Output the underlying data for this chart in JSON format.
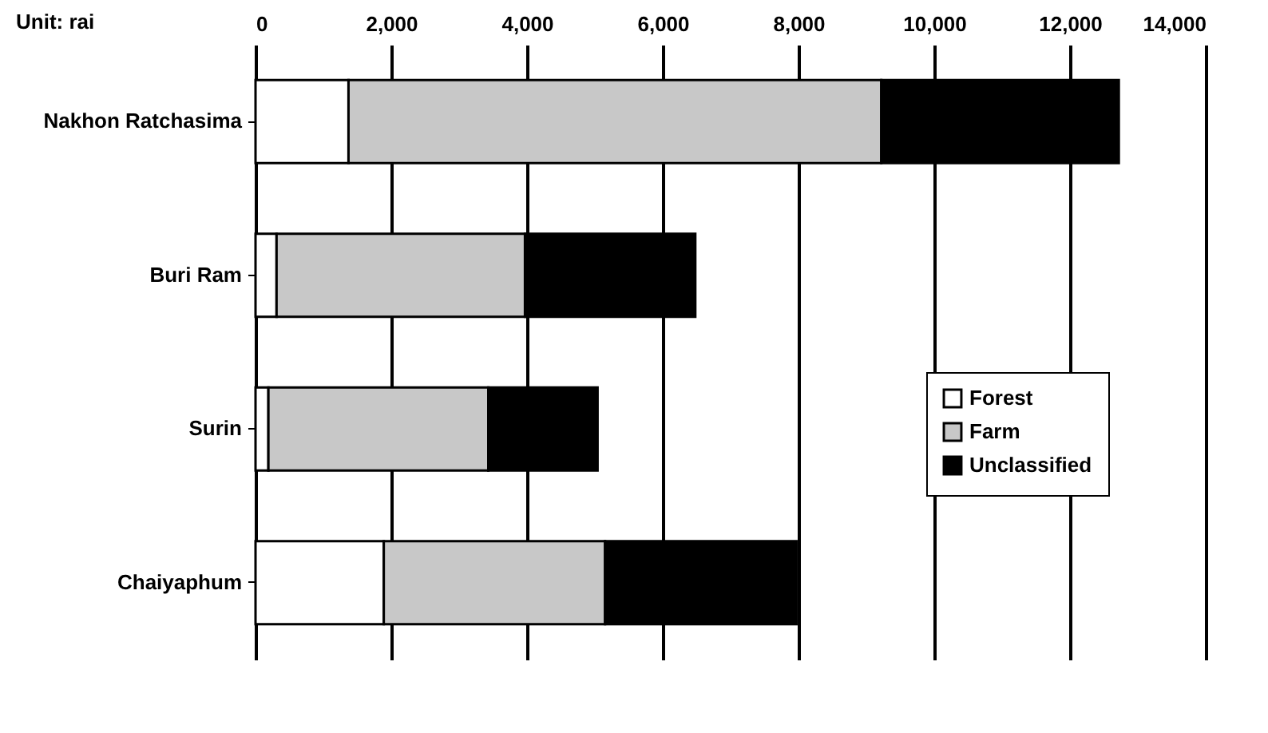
{
  "chart_data": {
    "type": "bar",
    "orientation": "horizontal",
    "stacked": true,
    "categories": [
      "Nakhon Ratchasima",
      "Buri Ram",
      "Surin",
      "Chaiyaphum"
    ],
    "series": [
      {
        "name": "Forest",
        "color": "#ffffff",
        "values": [
          1370,
          310,
          190,
          1890
        ]
      },
      {
        "name": "Farm",
        "color": "#c8c8c8",
        "values": [
          7850,
          3660,
          3240,
          3260
        ]
      },
      {
        "name": "Unclassified",
        "color": "#000000",
        "values": [
          3500,
          2510,
          1610,
          2820
        ]
      }
    ],
    "xlim": [
      0,
      14000
    ],
    "xticks": [
      {
        "value": 0,
        "label": "0"
      },
      {
        "value": 2000,
        "label": "2,000"
      },
      {
        "value": 4000,
        "label": "4,000"
      },
      {
        "value": 6000,
        "label": "6,000"
      },
      {
        "value": 8000,
        "label": "8,000"
      },
      {
        "value": 10000,
        "label": "10,000"
      },
      {
        "value": 12000,
        "label": "12,000"
      },
      {
        "value": 14000,
        "label": "14,000"
      }
    ],
    "grid": "x",
    "legend": "right",
    "annotations": [
      "Unit: rai"
    ]
  }
}
